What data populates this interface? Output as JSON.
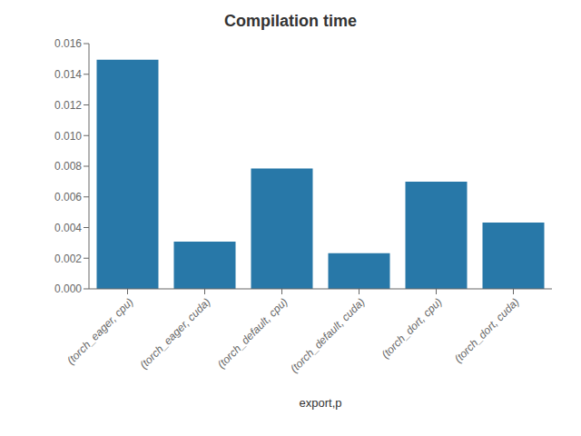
{
  "chart_data": {
    "type": "bar",
    "title": "Compilation time",
    "xlabel": "export,p",
    "categories": [
      "(torch_eager, cpu)",
      "(torch_eager, cuda)",
      "(torch_default, cpu)",
      "(torch_default, cuda)",
      "(torch_dort, cpu)",
      "(torch_dort, cuda)"
    ],
    "values": [
      0.01495,
      0.00308,
      0.00785,
      0.00233,
      0.007,
      0.00433
    ],
    "color": "#2878a8",
    "ylim": [
      0,
      0.016
    ],
    "yticks": [
      {
        "value": 0,
        "label": "0.000"
      },
      0.002,
      0.004,
      0.006,
      0.008,
      {
        "value": 0.01,
        "label": "0.010"
      },
      0.012,
      0.014,
      0.016
    ],
    "grid": false
  }
}
